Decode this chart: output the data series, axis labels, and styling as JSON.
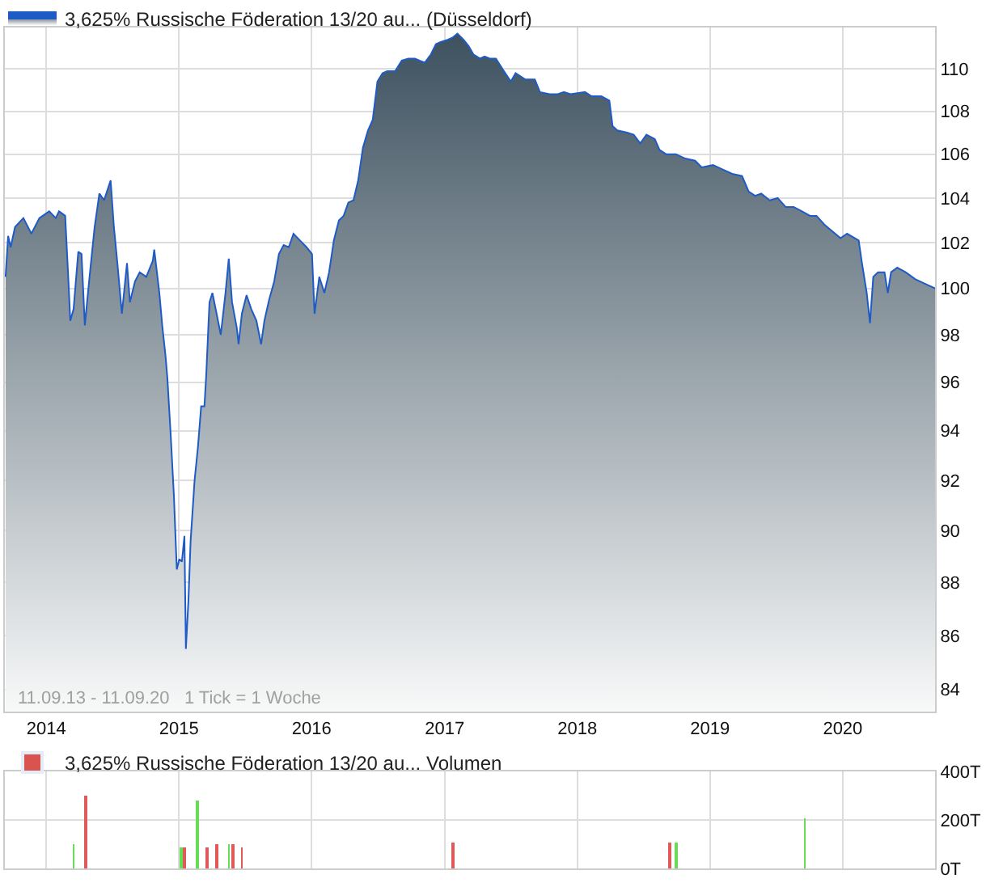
{
  "chart_data": [
    {
      "type": "area",
      "log": "y",
      "grid": true,
      "legend": "top left",
      "xlim": [
        "2013-09-09",
        "2020-09-11"
      ],
      "xticks": [
        {
          "value": "2014-01-01",
          "label": "2014"
        },
        {
          "value": "2015-01-01",
          "label": "2015"
        },
        {
          "value": "2016-01-01",
          "label": "2016"
        },
        {
          "value": "2017-01-01",
          "label": "2017"
        },
        {
          "value": "2018-01-01",
          "label": "2018"
        },
        {
          "value": "2019-01-01",
          "label": "2019"
        },
        {
          "value": "2020-01-01",
          "label": "2020"
        }
      ],
      "ylim": [
        83.2,
        112
      ],
      "yticks": [
        84,
        86,
        88,
        90,
        92,
        94,
        96,
        98,
        100,
        102,
        104,
        106,
        108,
        110
      ],
      "annotations": [
        "11.09.13 - 11.09.20   1 Tick = 1 Woche"
      ],
      "series": [
        {
          "name": "3,625% Russische Föderation 13/20 au... (Düsseldorf)",
          "color": "#1f5bc6",
          "x": [
            "2013-09-11",
            "2013-09-18",
            "2013-09-25",
            "2013-10-07",
            "2013-10-30",
            "2013-11-21",
            "2013-12-13",
            "2014-01-09",
            "2014-01-27",
            "2014-02-05",
            "2014-02-22",
            "2014-03-03",
            "2014-03-08",
            "2014-03-17",
            "2014-03-30",
            "2014-04-08",
            "2014-04-17",
            "2014-04-30",
            "2014-05-14",
            "2014-05-27",
            "2014-06-09",
            "2014-06-27",
            "2014-07-06",
            "2014-07-15",
            "2014-07-28",
            "2014-08-11",
            "2014-08-19",
            "2014-09-02",
            "2014-09-15",
            "2014-10-03",
            "2014-10-21",
            "2014-10-25",
            "2014-11-08",
            "2014-11-16",
            "2014-11-25",
            "2014-11-30",
            "2014-12-09",
            "2014-12-18",
            "2014-12-26",
            "2015-01-02",
            "2015-01-09",
            "2015-01-16",
            "2015-01-20",
            "2015-01-27",
            "2015-02-02",
            "2015-02-13",
            "2015-02-22",
            "2015-03-03",
            "2015-03-12",
            "2015-03-17",
            "2015-03-23",
            "2015-03-26",
            "2015-04-03",
            "2015-04-12",
            "2015-04-26",
            "2015-05-09",
            "2015-05-18",
            "2015-05-27",
            "2015-06-09",
            "2015-06-14",
            "2015-06-23",
            "2015-07-06",
            "2015-07-19",
            "2015-08-02",
            "2015-08-15",
            "2015-08-24",
            "2015-09-06",
            "2015-09-20",
            "2015-10-03",
            "2015-10-16",
            "2015-10-30",
            "2015-11-12",
            "2015-11-30",
            "2015-12-18",
            "2016-01-02",
            "2016-01-09",
            "2016-01-22",
            "2016-02-05",
            "2016-02-18",
            "2016-03-02",
            "2016-03-16",
            "2016-03-29",
            "2016-04-11",
            "2016-04-25",
            "2016-05-08",
            "2016-05-21",
            "2016-06-04",
            "2016-06-17",
            "2016-06-30",
            "2016-07-14",
            "2016-07-27",
            "2016-08-18",
            "2016-09-05",
            "2016-09-23",
            "2016-10-11",
            "2016-10-24",
            "2016-11-07",
            "2016-11-24",
            "2016-12-08",
            "2016-12-21",
            "2017-01-09",
            "2017-01-22",
            "2017-02-05",
            "2017-02-22",
            "2017-03-08",
            "2017-03-21",
            "2017-04-08",
            "2017-04-21",
            "2017-05-05",
            "2017-05-22",
            "2017-06-09",
            "2017-07-02",
            "2017-07-15",
            "2017-08-11",
            "2017-09-06",
            "2017-09-20",
            "2017-10-17",
            "2017-11-08",
            "2017-11-25",
            "2017-12-13",
            "2018-01-22",
            "2018-02-09",
            "2018-03-08",
            "2018-03-30",
            "2018-04-08",
            "2018-04-21",
            "2018-05-18",
            "2018-06-05",
            "2018-06-23",
            "2018-07-10",
            "2018-08-02",
            "2018-08-15",
            "2018-09-02",
            "2018-09-29",
            "2018-10-25",
            "2018-11-21",
            "2018-12-09",
            "2019-01-09",
            "2019-02-05",
            "2019-03-03",
            "2019-03-30",
            "2019-04-17",
            "2019-05-05",
            "2019-05-22",
            "2019-06-14",
            "2019-07-06",
            "2019-07-28",
            "2019-08-19",
            "2019-09-11",
            "2019-10-03",
            "2019-10-21",
            "2019-11-12",
            "2019-12-04",
            "2019-12-26",
            "2020-01-13",
            "2020-02-14",
            "2020-02-22",
            "2020-03-07",
            "2020-03-16",
            "2020-03-25",
            "2020-04-07",
            "2020-04-25",
            "2020-05-04",
            "2020-05-13",
            "2020-05-30",
            "2020-06-22",
            "2020-07-18",
            "2020-08-14",
            "2020-09-11"
          ],
          "values": [
            100.5,
            102.3,
            101.8,
            102.7,
            103.1,
            102.4,
            103.1,
            103.4,
            103.1,
            103.4,
            103.2,
            100.3,
            98.6,
            99.1,
            101.6,
            101.5,
            98.4,
            100.5,
            102.7,
            104.2,
            103.9,
            104.8,
            102.7,
            101.2,
            98.9,
            101.1,
            99.4,
            100.3,
            100.7,
            100.5,
            101.2,
            101.7,
            99.8,
            98.4,
            97.1,
            96.2,
            93.9,
            91.4,
            88.5,
            88.9,
            88.8,
            89.8,
            85.5,
            87.3,
            89.6,
            92,
            93.3,
            95,
            95,
            96.3,
            98.4,
            99.4,
            99.8,
            99.1,
            98,
            99.8,
            101.3,
            99.4,
            98.3,
            97.6,
            98.9,
            99.7,
            99.1,
            98.6,
            97.6,
            98.6,
            99.5,
            100.3,
            101.5,
            101.9,
            101.8,
            102.4,
            102.1,
            101.8,
            101.5,
            98.9,
            100.5,
            99.8,
            100.7,
            102.1,
            103,
            103.2,
            103.8,
            103.9,
            104.8,
            106.3,
            107.1,
            107.6,
            109.4,
            109.8,
            109.9,
            109.9,
            110.4,
            110.5,
            110.5,
            110.4,
            110.3,
            110.7,
            111.2,
            111.3,
            111.4,
            111.5,
            111.7,
            111.4,
            111.1,
            110.7,
            110.5,
            110.6,
            110.5,
            110.5,
            110,
            109.4,
            109.8,
            109.5,
            109.5,
            108.9,
            108.8,
            108.8,
            108.9,
            108.8,
            108.9,
            108.7,
            108.7,
            108.5,
            107.3,
            107.1,
            107,
            106.9,
            106.5,
            106.9,
            106.7,
            106.2,
            106,
            106,
            105.8,
            105.7,
            105.4,
            105.5,
            105.3,
            105.1,
            105,
            104.3,
            104.1,
            104.2,
            103.9,
            104,
            103.6,
            103.6,
            103.4,
            103.2,
            103.2,
            102.8,
            102.5,
            102.2,
            102.4,
            102.1,
            101.2,
            99.8,
            98.5,
            100.5,
            100.7,
            100.7,
            99.8,
            100.7,
            100.9,
            100.7,
            100.4,
            100.2,
            100
          ]
        }
      ]
    },
    {
      "type": "bar",
      "grid": true,
      "legend": "top left",
      "tick_labels": "y",
      "xlim": [
        "2013-09-09",
        "2020-09-11"
      ],
      "xticks": [
        {
          "value": "2014-01-01",
          "label": null
        },
        {
          "value": "2015-01-01",
          "label": null
        },
        {
          "value": "2016-01-01",
          "label": null
        },
        {
          "value": "2017-01-01",
          "label": null
        },
        {
          "value": "2018-01-01",
          "label": null
        },
        {
          "value": "2019-01-01",
          "label": null
        },
        {
          "value": "2020-01-01",
          "label": null
        }
      ],
      "ylim": [
        0,
        400
      ],
      "yticks": [
        {
          "value": 0,
          "label": "0T"
        },
        {
          "value": 200,
          "label": "200T"
        },
        {
          "value": 400,
          "label": "400T"
        }
      ],
      "series": [
        {
          "name": "3,625% Russische Föderation 13/20 au... Volumen",
          "color": "#d9534f",
          "x": [
            "2014-03-17",
            "2014-04-21",
            "2015-01-08",
            "2015-01-17",
            "2015-02-20",
            "2015-03-20",
            "2015-04-16",
            "2015-05-18",
            "2015-05-30",
            "2015-06-23",
            "2017-01-24",
            "2018-09-13",
            "2018-10-01",
            "2019-09-19"
          ],
          "values": [
            100,
            300,
            90,
            90,
            280,
            90,
            100,
            100,
            100,
            90,
            110,
            110,
            110,
            210
          ],
          "colors": [
            "#66dd55",
            "#e05a5a",
            "#66dd55",
            "#e05a5a",
            "#66dd55",
            "#e05a5a",
            "#e05a5a",
            "#66dd55",
            "#e05a5a",
            "#e05a5a",
            "#e05a5a",
            "#e05a5a",
            "#66dd55",
            "#66dd55"
          ]
        }
      ]
    }
  ]
}
